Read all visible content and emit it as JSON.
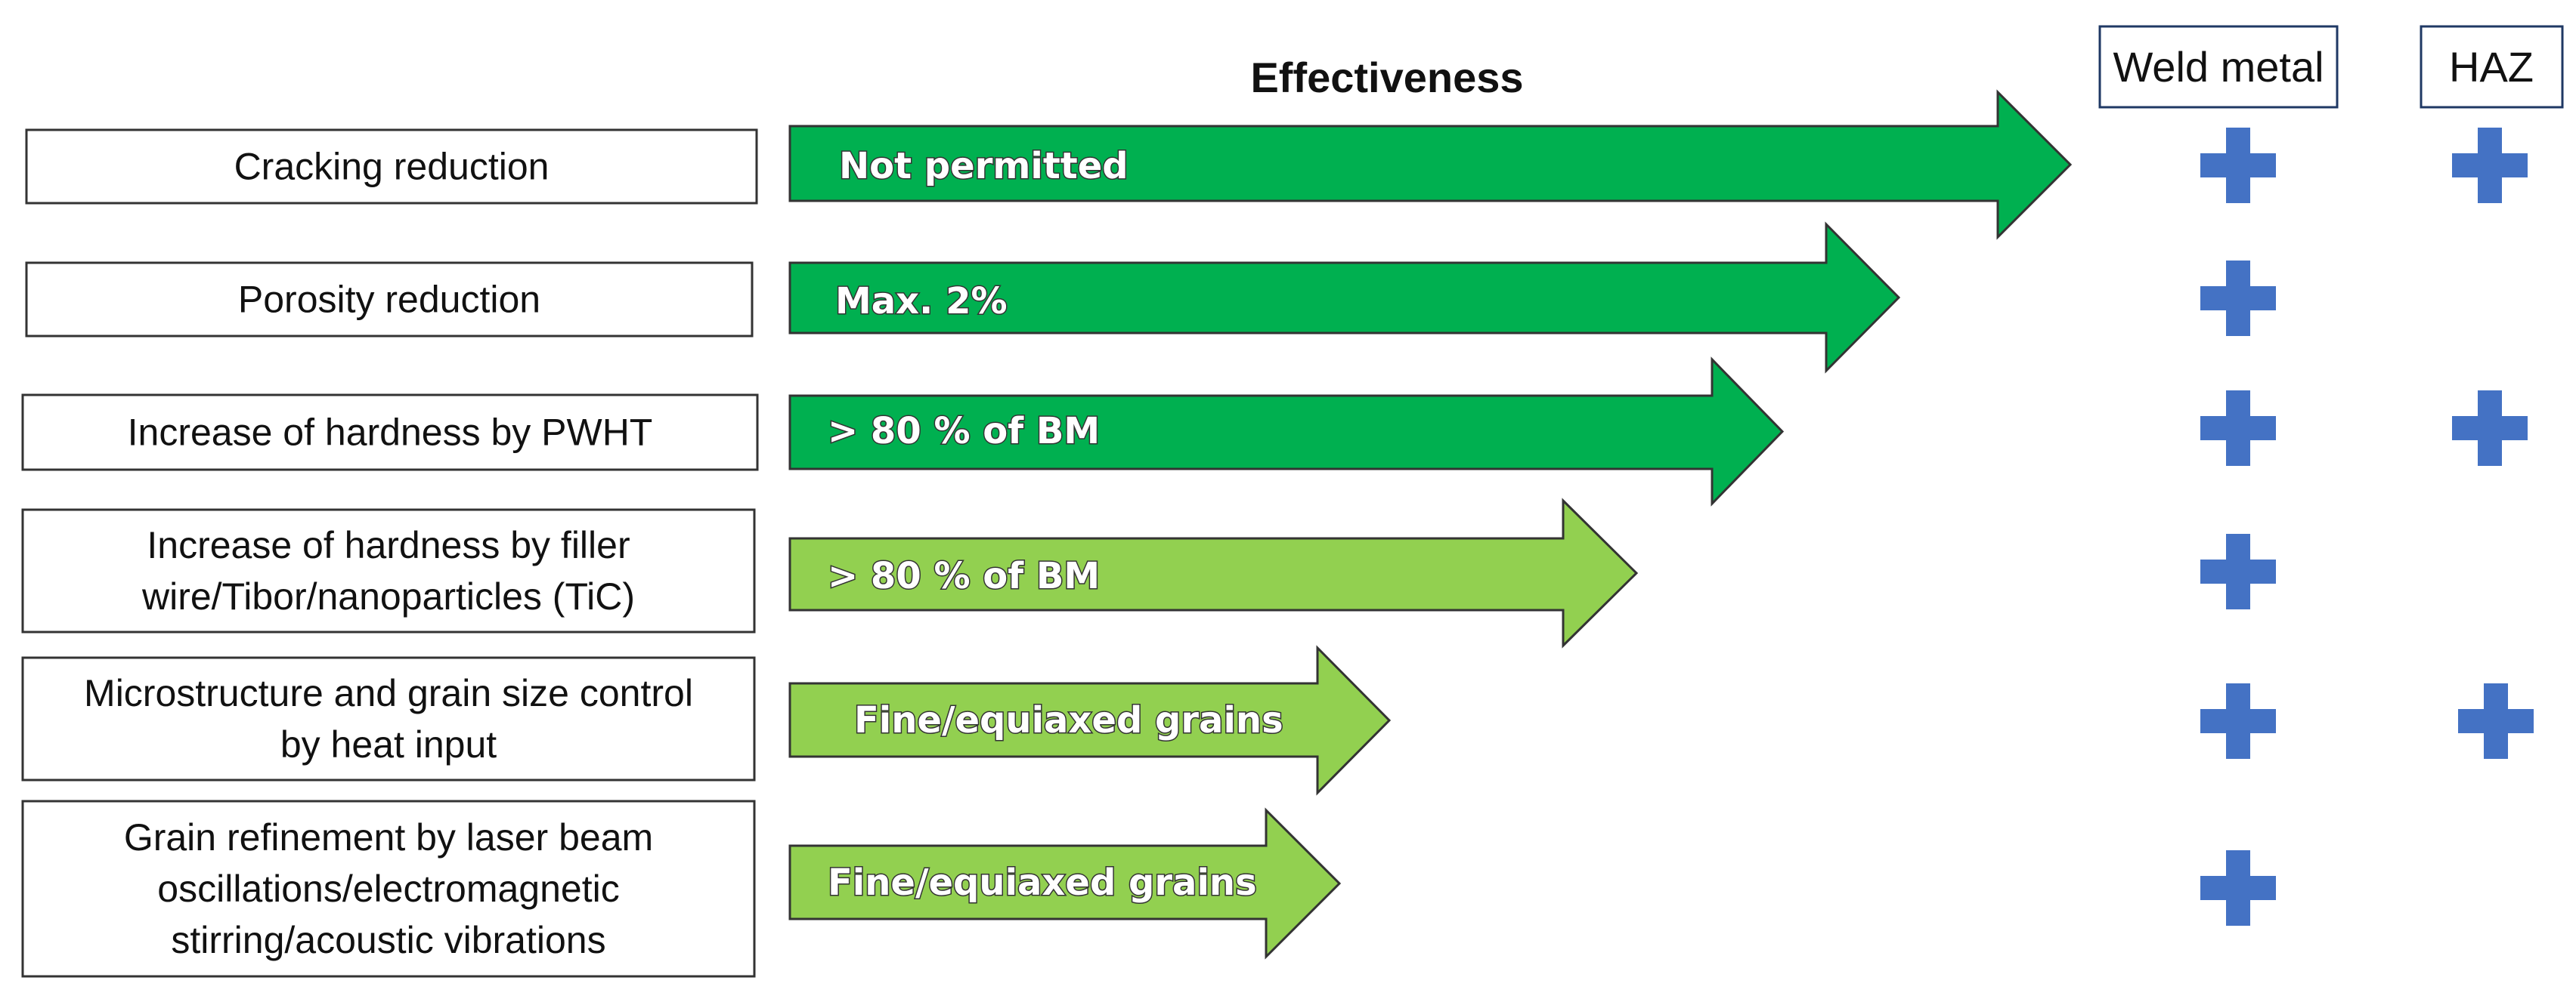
{
  "header": {
    "title": "Effectiveness",
    "columns": [
      "Weld metal",
      "HAZ"
    ]
  },
  "colors": {
    "dark_green": "#00B050",
    "light_green": "#92D050",
    "plus_blue": "#4472C4",
    "box_border": "#1F3864",
    "outline": "#333333"
  },
  "rows": [
    {
      "label_lines": [
        "Cracking reduction"
      ],
      "arrow_label": "Not permitted",
      "arrow_color": "dark_green",
      "weld_metal": true,
      "haz": true
    },
    {
      "label_lines": [
        "Porosity reduction"
      ],
      "arrow_label": "Max. 2%",
      "arrow_color": "dark_green",
      "weld_metal": true,
      "haz": false
    },
    {
      "label_lines": [
        "Increase of hardness by PWHT"
      ],
      "arrow_label": "> 80 % of BM",
      "arrow_color": "dark_green",
      "weld_metal": true,
      "haz": true
    },
    {
      "label_lines": [
        "Increase of hardness by filler",
        "wire/Tibor/nanoparticles (TiC)"
      ],
      "arrow_label": "> 80 % of BM",
      "arrow_color": "light_green",
      "weld_metal": true,
      "haz": false
    },
    {
      "label_lines": [
        "Microstructure and grain size control",
        "by heat input"
      ],
      "arrow_label": "Fine/equiaxed grains",
      "arrow_color": "light_green",
      "weld_metal": true,
      "haz": true
    },
    {
      "label_lines": [
        "Grain refinement by laser beam",
        "oscillations/electromagnetic",
        "stirring/acoustic vibrations"
      ],
      "arrow_label": "Fine/equiaxed grains",
      "arrow_color": "light_green",
      "weld_metal": true,
      "haz": false
    }
  ]
}
